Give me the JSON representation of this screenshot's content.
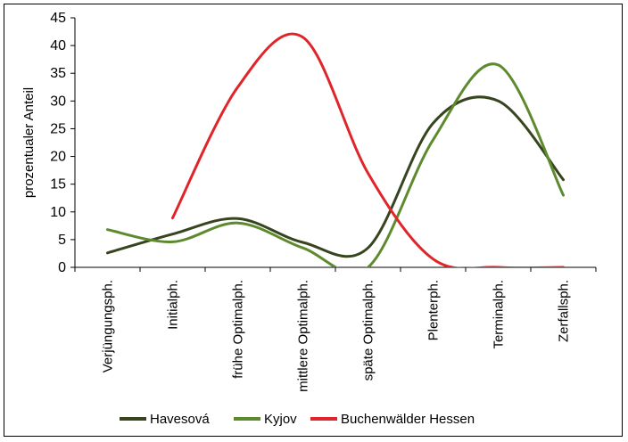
{
  "chart_data": {
    "type": "line",
    "title": "",
    "xlabel": "",
    "ylabel": "prozentualer Anteil",
    "ylim": [
      0,
      45
    ],
    "yticks": [
      0,
      5,
      10,
      15,
      20,
      25,
      30,
      35,
      40,
      45
    ],
    "grid": false,
    "legend_position": "bottom",
    "categories": [
      "Verjüngungsph.",
      "Initialph.",
      "frühe Optimalph.",
      "mittlere Optimalph.",
      "späte Optimalph.",
      "Plenterph.",
      "Terminalph.",
      "Zerfallsph."
    ],
    "series": [
      {
        "name": "Havesová",
        "color": "#36451f",
        "values": [
          2.6,
          6.0,
          8.8,
          4.5,
          3.5,
          26.0,
          30.0,
          15.8
        ]
      },
      {
        "name": "Kyjov",
        "color": "#5e8a2e",
        "values": [
          6.8,
          4.6,
          8.0,
          3.5,
          0,
          23.0,
          36.5,
          13.0
        ]
      },
      {
        "name": "Buchenwälder Hessen",
        "color": "#e0252a",
        "values": [
          null,
          8.9,
          32.5,
          41.5,
          17.0,
          1.5,
          0.0,
          0.0
        ]
      }
    ]
  }
}
